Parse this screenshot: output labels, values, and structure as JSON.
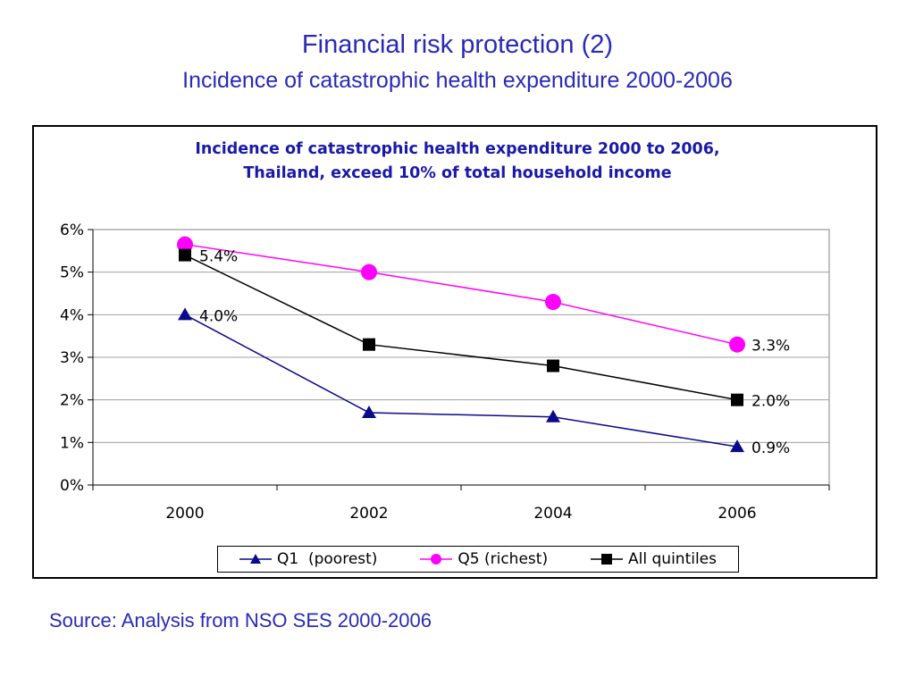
{
  "slide": {
    "title": "Financial risk protection (2)",
    "subtitle": "Incidence of catastrophic health expenditure 2000-2006",
    "source": "Source: Analysis from NSO SES 2000-2006"
  },
  "chart_data": {
    "type": "line",
    "title_lines": [
      "Incidence of catastrophic health expenditure 2000 to 2006,",
      "Thailand, exceed 10% of total household income"
    ],
    "xlabel": "",
    "ylabel": "",
    "categories": [
      "2000",
      "2002",
      "2004",
      "2006"
    ],
    "ylim": [
      0,
      6
    ],
    "y_ticks": [
      "0%",
      "1%",
      "2%",
      "3%",
      "4%",
      "5%",
      "6%"
    ],
    "grid": true,
    "legend_position": "bottom",
    "series": [
      {
        "name": "Q1  (poorest)",
        "values": [
          4.0,
          1.7,
          1.6,
          0.9
        ],
        "color": "#0a0a8a",
        "marker": "triangle",
        "data_labels": [
          "4.0%",
          "",
          "",
          "0.9%"
        ]
      },
      {
        "name": "Q5 (richest)",
        "values": [
          5.65,
          5.0,
          4.3,
          3.3
        ],
        "color": "#ff00ff",
        "marker": "circle",
        "data_labels": [
          "",
          "",
          "",
          "3.3%"
        ]
      },
      {
        "name": "All quintiles",
        "values": [
          5.4,
          3.3,
          2.8,
          2.0
        ],
        "color": "#000000",
        "marker": "square",
        "data_labels": [
          "5.4%",
          "",
          "",
          "2.0%"
        ]
      }
    ]
  }
}
